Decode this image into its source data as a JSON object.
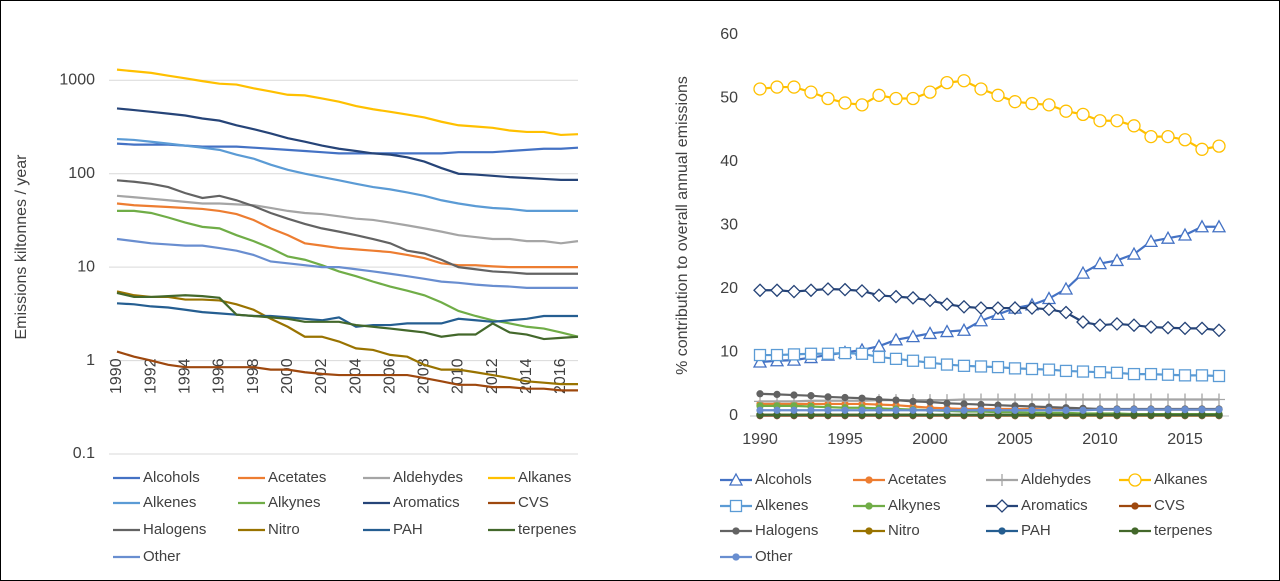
{
  "chart_data": [
    {
      "type": "line",
      "log_y": true,
      "grid": true,
      "y_label": "Emissions kiltonnes / year",
      "x": [
        1990,
        1991,
        1992,
        1993,
        1994,
        1995,
        1996,
        1997,
        1998,
        1999,
        2000,
        2001,
        2002,
        2003,
        2004,
        2005,
        2006,
        2007,
        2008,
        2009,
        2010,
        2011,
        2012,
        2013,
        2014,
        2015,
        2016,
        2017
      ],
      "xlim": [
        1990,
        2017
      ],
      "xticks": [
        1990,
        1992,
        1994,
        1996,
        1998,
        2000,
        2002,
        2004,
        2006,
        2008,
        2010,
        2012,
        2014,
        2016
      ],
      "ylim": [
        0.1,
        2700
      ],
      "yticks": [
        0.1,
        1,
        10,
        100,
        1000
      ],
      "series": [
        {
          "name": "Alcohols",
          "color": "#4472c4",
          "values": [
            210,
            205,
            205,
            205,
            200,
            195,
            195,
            195,
            190,
            185,
            180,
            175,
            170,
            165,
            165,
            165,
            165,
            165,
            165,
            165,
            170,
            170,
            170,
            175,
            180,
            185,
            185,
            190
          ]
        },
        {
          "name": "Acetates",
          "color": "#ed7d31",
          "values": [
            48,
            46,
            45,
            44,
            43,
            42,
            40,
            37,
            32,
            26,
            22,
            18,
            17,
            16,
            15.5,
            15,
            14.5,
            13.5,
            12.5,
            11,
            10.5,
            10.5,
            10.2,
            10,
            10,
            10,
            10,
            10
          ]
        },
        {
          "name": "Aldehydes",
          "color": "#a5a5a5",
          "values": [
            58,
            56,
            54,
            52,
            50,
            48,
            48,
            47,
            46,
            43,
            40,
            38,
            37,
            35,
            33,
            32,
            30,
            28,
            26,
            24,
            22,
            21,
            20,
            20,
            19,
            19,
            18,
            19
          ]
        },
        {
          "name": "Alkanes",
          "color": "#ffc000",
          "values": [
            1300,
            1250,
            1200,
            1120,
            1050,
            980,
            920,
            900,
            820,
            760,
            700,
            690,
            640,
            590,
            530,
            490,
            460,
            430,
            400,
            360,
            330,
            320,
            310,
            290,
            280,
            280,
            260,
            265
          ]
        },
        {
          "name": "Alkenes",
          "color": "#5b9bd5",
          "values": [
            235,
            230,
            220,
            210,
            200,
            190,
            180,
            160,
            145,
            125,
            110,
            100,
            92,
            85,
            78,
            72,
            68,
            63,
            58,
            52,
            48,
            45,
            43,
            42,
            40,
            40,
            40,
            40
          ]
        },
        {
          "name": "Alkynes",
          "color": "#70ad47",
          "values": [
            40,
            40,
            38,
            34,
            30,
            27,
            26,
            22,
            19,
            16,
            13,
            12,
            10.5,
            9,
            8,
            7,
            6.2,
            5.6,
            5,
            4.2,
            3.4,
            3,
            2.7,
            2.5,
            2.3,
            2.2,
            2,
            1.8
          ]
        },
        {
          "name": "Aromatics",
          "color": "#264478",
          "values": [
            500,
            480,
            460,
            440,
            420,
            390,
            370,
            330,
            300,
            270,
            240,
            220,
            200,
            185,
            175,
            165,
            160,
            150,
            135,
            115,
            100,
            98,
            95,
            92,
            90,
            88,
            86,
            86
          ]
        },
        {
          "name": "CVS",
          "color": "#9e480e",
          "values": [
            1.25,
            1.1,
            1,
            0.9,
            0.85,
            0.85,
            0.85,
            0.85,
            0.85,
            0.8,
            0.8,
            0.75,
            0.72,
            0.7,
            0.7,
            0.7,
            0.7,
            0.7,
            0.65,
            0.6,
            0.55,
            0.55,
            0.52,
            0.52,
            0.5,
            0.5,
            0.48,
            0.48
          ]
        },
        {
          "name": "Halogens",
          "color": "#636363",
          "values": [
            85,
            82,
            78,
            72,
            62,
            55,
            58,
            52,
            45,
            38,
            33,
            29,
            26,
            24,
            22,
            20,
            18,
            15,
            14,
            12,
            10,
            9.5,
            9,
            8.8,
            8.5,
            8.5,
            8.5,
            8.5
          ]
        },
        {
          "name": "Nitro",
          "color": "#997300",
          "values": [
            5.5,
            5,
            4.8,
            4.8,
            4.5,
            4.5,
            4.4,
            4,
            3.5,
            2.8,
            2.3,
            1.8,
            1.8,
            1.6,
            1.35,
            1.3,
            1.15,
            1.1,
            0.9,
            0.8,
            0.8,
            0.75,
            0.7,
            0.65,
            0.6,
            0.58,
            0.56,
            0.56
          ]
        },
        {
          "name": "PAH",
          "color": "#255e91",
          "values": [
            4.1,
            4,
            3.8,
            3.7,
            3.5,
            3.3,
            3.2,
            3.1,
            3,
            3,
            2.9,
            2.8,
            2.7,
            2.9,
            2.3,
            2.4,
            2.4,
            2.5,
            2.5,
            2.5,
            2.8,
            2.7,
            2.6,
            2.7,
            2.8,
            3,
            3,
            3
          ]
        },
        {
          "name": "terpenes",
          "color": "#43682b",
          "values": [
            5.3,
            4.8,
            4.8,
            4.9,
            5,
            4.9,
            4.7,
            3.1,
            3,
            2.9,
            2.8,
            2.6,
            2.6,
            2.6,
            2.4,
            2.3,
            2.2,
            2.1,
            2,
            1.8,
            1.9,
            1.9,
            2.5,
            2,
            1.9,
            1.7,
            1.75,
            1.8
          ]
        },
        {
          "name": "Other",
          "color": "#698ed0",
          "values": [
            20,
            19,
            18,
            17.5,
            17,
            17,
            16,
            15,
            13.5,
            11.5,
            11,
            10.5,
            10,
            10,
            9.5,
            9,
            8.5,
            8,
            7.5,
            7,
            6.8,
            6.5,
            6.3,
            6.2,
            6,
            6,
            6,
            6
          ]
        }
      ]
    },
    {
      "type": "line",
      "log_y": false,
      "grid": false,
      "y_label": "% contribution to overall annual emissions",
      "x": [
        1990,
        1991,
        1992,
        1993,
        1994,
        1995,
        1996,
        1997,
        1998,
        1999,
        2000,
        2001,
        2002,
        2003,
        2004,
        2005,
        2006,
        2007,
        2008,
        2009,
        2010,
        2011,
        2012,
        2013,
        2014,
        2015,
        2016,
        2017
      ],
      "xlim": [
        1990,
        2017
      ],
      "xticks": [
        1990,
        1995,
        2000,
        2005,
        2010,
        2015
      ],
      "ylim": [
        0,
        60
      ],
      "yticks": [
        0,
        10,
        20,
        30,
        40,
        50,
        60
      ],
      "series": [
        {
          "name": "Alcohols",
          "color": "#4472c4",
          "marker": "triangle",
          "values": [
            8.5,
            8.7,
            8.8,
            9.2,
            9.6,
            10,
            10.4,
            11,
            12,
            12.5,
            13,
            13.3,
            13.5,
            15,
            16,
            17,
            17.5,
            18.5,
            20,
            22.5,
            24,
            24.5,
            25.5,
            27.5,
            28,
            28.5,
            29.8,
            29.8
          ]
        },
        {
          "name": "Acetates",
          "color": "#ed7d31",
          "marker": "dot",
          "values": [
            1.9,
            1.9,
            1.9,
            1.9,
            1.9,
            1.9,
            1.9,
            1.8,
            1.7,
            1.5,
            1.3,
            1.2,
            1.1,
            1.1,
            1.1,
            1.1,
            1.1,
            1,
            1,
            1,
            1,
            1,
            1,
            1,
            1,
            1,
            1,
            1
          ]
        },
        {
          "name": "Aldehydes",
          "color": "#a5a5a5",
          "marker": "plus",
          "values": [
            2.3,
            2.3,
            2.3,
            2.4,
            2.4,
            2.4,
            2.4,
            2.5,
            2.5,
            2.5,
            2.5,
            2.5,
            2.6,
            2.6,
            2.6,
            2.6,
            2.6,
            2.6,
            2.6,
            2.6,
            2.6,
            2.6,
            2.6,
            2.6,
            2.6,
            2.6,
            2.6,
            2.6
          ]
        },
        {
          "name": "Alkanes",
          "color": "#ffc000",
          "marker": "circle",
          "values": [
            51.5,
            51.8,
            51.8,
            51,
            50,
            49.3,
            49,
            50.5,
            50,
            50,
            51,
            52.5,
            52.8,
            51.5,
            50.5,
            49.5,
            49.2,
            49,
            48,
            47.5,
            46.5,
            46.5,
            45.7,
            44,
            44,
            43.5,
            42,
            42.5
          ]
        },
        {
          "name": "Alkenes",
          "color": "#5b9bd5",
          "marker": "square",
          "values": [
            9.6,
            9.6,
            9.7,
            9.8,
            9.8,
            9.9,
            9.8,
            9.3,
            9,
            8.7,
            8.4,
            8.1,
            7.9,
            7.8,
            7.7,
            7.5,
            7.4,
            7.3,
            7.1,
            7,
            6.9,
            6.8,
            6.6,
            6.6,
            6.5,
            6.4,
            6.4,
            6.3
          ]
        },
        {
          "name": "Alkynes",
          "color": "#70ad47",
          "marker": "dot",
          "values": [
            1.6,
            1.6,
            1.6,
            1.5,
            1.4,
            1.3,
            1.3,
            1.2,
            1.1,
            1,
            0.9,
            0.8,
            0.7,
            0.7,
            0.6,
            0.6,
            0.5,
            0.5,
            0.5,
            0.4,
            0.4,
            0.4,
            0.3,
            0.3,
            0.3,
            0.3,
            0.3,
            0.3
          ]
        },
        {
          "name": "Aromatics",
          "color": "#264478",
          "marker": "diamond",
          "values": [
            19.8,
            19.8,
            19.6,
            19.8,
            20,
            19.9,
            19.7,
            19,
            18.8,
            18.6,
            18.2,
            17.6,
            17.2,
            17,
            17,
            17,
            17,
            16.8,
            16.3,
            14.8,
            14.3,
            14.5,
            14.3,
            14,
            13.9,
            13.8,
            13.8,
            13.5
          ]
        },
        {
          "name": "CVS",
          "color": "#9e480e",
          "marker": "dot",
          "values": [
            0.05,
            0.05,
            0.05,
            0.05,
            0.05,
            0.05,
            0.05,
            0.05,
            0.05,
            0.05,
            0.05,
            0.05,
            0.05,
            0.05,
            0.05,
            0.05,
            0.05,
            0.05,
            0.05,
            0.05,
            0.05,
            0.05,
            0.05,
            0.05,
            0.05,
            0.05,
            0.05,
            0.05
          ]
        },
        {
          "name": "Halogens",
          "color": "#636363",
          "marker": "dot",
          "values": [
            3.5,
            3.4,
            3.3,
            3.2,
            3,
            2.9,
            2.8,
            2.6,
            2.5,
            2.3,
            2.2,
            2,
            1.9,
            1.8,
            1.7,
            1.6,
            1.5,
            1.4,
            1.3,
            1.2,
            1.1,
            1.1,
            1.1,
            1.1,
            1.1,
            1.1,
            1.1,
            1.1
          ]
        },
        {
          "name": "Nitro",
          "color": "#997300",
          "marker": "dot",
          "values": [
            0.2,
            0.2,
            0.2,
            0.2,
            0.2,
            0.2,
            0.2,
            0.2,
            0.2,
            0.2,
            0.15,
            0.15,
            0.15,
            0.15,
            0.15,
            0.1,
            0.1,
            0.1,
            0.1,
            0.1,
            0.1,
            0.1,
            0.1,
            0.1,
            0.1,
            0.1,
            0.1,
            0.1
          ]
        },
        {
          "name": "PAH",
          "color": "#255e91",
          "marker": "dot",
          "values": [
            0.15,
            0.15,
            0.15,
            0.15,
            0.15,
            0.15,
            0.15,
            0.15,
            0.15,
            0.15,
            0.15,
            0.15,
            0.15,
            0.15,
            0.15,
            0.15,
            0.15,
            0.15,
            0.15,
            0.15,
            0.15,
            0.15,
            0.15,
            0.15,
            0.15,
            0.15,
            0.15,
            0.15
          ]
        },
        {
          "name": "terpenes",
          "color": "#43682b",
          "marker": "dot",
          "values": [
            0.2,
            0.2,
            0.2,
            0.2,
            0.2,
            0.2,
            0.2,
            0.2,
            0.2,
            0.2,
            0.2,
            0.2,
            0.2,
            0.2,
            0.2,
            0.2,
            0.2,
            0.2,
            0.2,
            0.2,
            0.2,
            0.2,
            0.2,
            0.2,
            0.2,
            0.2,
            0.2,
            0.2
          ]
        },
        {
          "name": "Other",
          "color": "#698ed0",
          "marker": "dot",
          "values": [
            0.9,
            0.9,
            0.9,
            0.9,
            0.9,
            0.9,
            0.9,
            0.9,
            0.9,
            0.9,
            0.9,
            0.9,
            0.9,
            0.9,
            0.9,
            0.9,
            0.9,
            0.9,
            0.9,
            0.9,
            1,
            1,
            1,
            1,
            1,
            1,
            1,
            1
          ]
        }
      ]
    }
  ]
}
